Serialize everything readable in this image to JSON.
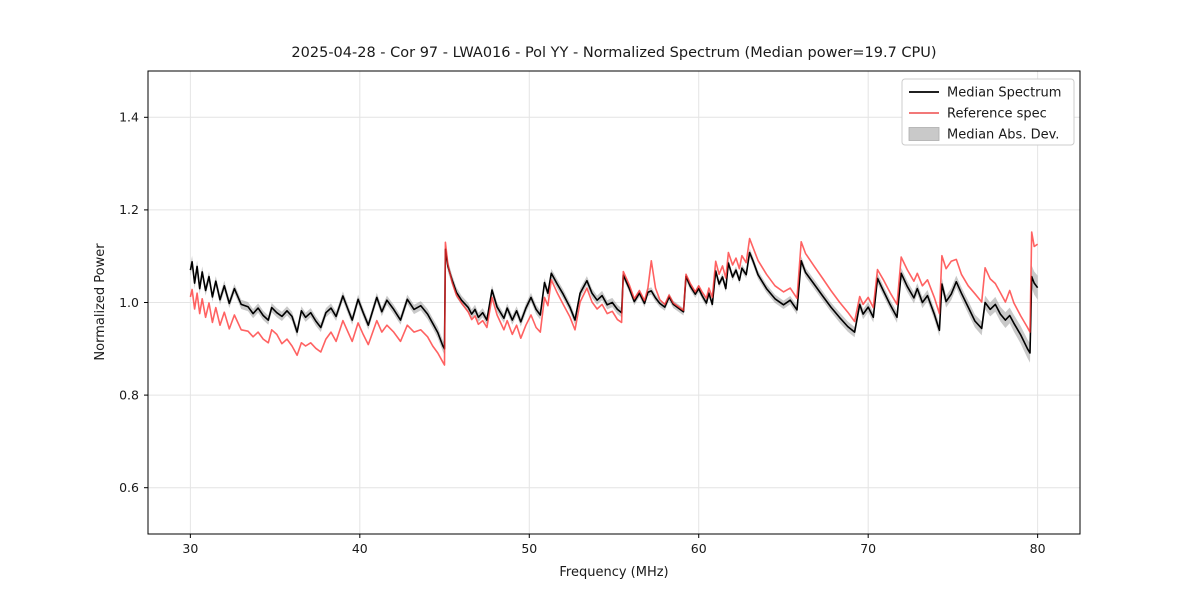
{
  "chart_data": {
    "type": "line",
    "title": "2025-04-28 - Cor 97 - LWA016 - Pol YY - Normalized Spectrum (Median power=19.7 CPU)",
    "xlabel": "Frequency (MHz)",
    "ylabel": "Normalized Power",
    "xlim": [
      27.5,
      82.5
    ],
    "ylim": [
      0.5,
      1.5
    ],
    "xticks": [
      30,
      40,
      50,
      60,
      70,
      80
    ],
    "yticks": [
      0.6,
      0.8,
      1.0,
      1.2,
      1.4
    ],
    "grid": true,
    "legend": {
      "position": "upper right",
      "items": [
        {
          "label": "Median Spectrum",
          "type": "line",
          "color": "#000000"
        },
        {
          "label": "Reference spec",
          "type": "line",
          "color": "#f06464"
        },
        {
          "label": "Median Abs. Dev.",
          "type": "patch",
          "color": "#c9c9c9"
        }
      ]
    },
    "colors": {
      "median": "#000000",
      "reference": "#ff2e2e",
      "reference_opacity": 0.75,
      "band": "#888888",
      "band_opacity": 0.45,
      "grid": "#e4e4e4",
      "frame": "#000000"
    },
    "x": [
      30.0,
      30.1,
      30.25,
      30.4,
      30.55,
      30.7,
      30.9,
      31.1,
      31.3,
      31.5,
      31.75,
      32.0,
      32.3,
      32.6,
      33.0,
      33.4,
      33.7,
      34.0,
      34.3,
      34.6,
      34.8,
      35.1,
      35.4,
      35.7,
      36.0,
      36.3,
      36.55,
      36.8,
      37.1,
      37.4,
      37.7,
      38.0,
      38.3,
      38.6,
      39.0,
      39.3,
      39.55,
      39.9,
      40.2,
      40.5,
      41.0,
      41.3,
      41.6,
      42.0,
      42.4,
      42.8,
      43.2,
      43.6,
      44.0,
      44.3,
      44.6,
      44.9,
      45.0,
      45.05,
      45.2,
      45.45,
      45.7,
      46.0,
      46.4,
      46.6,
      46.8,
      47.0,
      47.25,
      47.5,
      47.8,
      48.1,
      48.5,
      48.7,
      49.0,
      49.25,
      49.5,
      49.8,
      50.1,
      50.4,
      50.65,
      50.9,
      51.1,
      51.3,
      51.65,
      52.0,
      52.4,
      52.7,
      53.0,
      53.4,
      53.7,
      54.0,
      54.3,
      54.6,
      54.9,
      55.2,
      55.45,
      55.55,
      55.9,
      56.2,
      56.5,
      56.8,
      57.0,
      57.2,
      57.45,
      57.7,
      58.0,
      58.25,
      58.5,
      58.8,
      59.1,
      59.25,
      59.5,
      59.8,
      60.0,
      60.2,
      60.45,
      60.6,
      60.8,
      61.0,
      61.2,
      61.4,
      61.6,
      61.75,
      62.0,
      62.2,
      62.4,
      62.55,
      62.8,
      63.0,
      63.2,
      63.5,
      64.0,
      64.5,
      65.0,
      65.4,
      65.8,
      66.05,
      66.3,
      66.8,
      67.3,
      67.8,
      68.3,
      68.8,
      69.2,
      69.5,
      69.7,
      70.0,
      70.3,
      70.55,
      70.9,
      71.3,
      71.7,
      71.95,
      72.3,
      72.7,
      72.9,
      73.2,
      73.5,
      73.9,
      74.2,
      74.35,
      74.6,
      74.9,
      75.2,
      75.5,
      75.9,
      76.3,
      76.7,
      76.9,
      77.2,
      77.5,
      77.8,
      78.1,
      78.35,
      78.6,
      79.0,
      79.4,
      79.55,
      79.65,
      79.8,
      80.0
    ],
    "series": [
      {
        "name": "Median Spectrum",
        "values": [
          1.07,
          1.088,
          1.042,
          1.078,
          1.03,
          1.066,
          1.026,
          1.056,
          1.012,
          1.046,
          1.006,
          1.036,
          0.998,
          1.03,
          0.996,
          0.991,
          0.976,
          0.988,
          0.972,
          0.962,
          0.989,
          0.978,
          0.97,
          0.982,
          0.97,
          0.936,
          0.982,
          0.968,
          0.978,
          0.96,
          0.946,
          0.978,
          0.988,
          0.97,
          1.014,
          0.985,
          0.962,
          1.007,
          0.978,
          0.951,
          1.011,
          0.98,
          1.005,
          0.985,
          0.962,
          1.007,
          0.985,
          0.993,
          0.975,
          0.955,
          0.935,
          0.906,
          0.9,
          1.115,
          1.078,
          1.048,
          1.022,
          1.005,
          0.989,
          0.975,
          0.985,
          0.968,
          0.978,
          0.962,
          1.027,
          0.99,
          0.966,
          0.988,
          0.962,
          0.982,
          0.958,
          0.988,
          1.011,
          0.985,
          0.973,
          1.043,
          1.02,
          1.063,
          1.04,
          1.018,
          0.99,
          0.962,
          1.02,
          1.047,
          1.02,
          1.005,
          1.015,
          0.995,
          1.0,
          0.985,
          0.978,
          1.059,
          1.03,
          1.002,
          1.02,
          0.998,
          1.022,
          1.025,
          1.01,
          0.998,
          0.99,
          1.012,
          0.996,
          0.988,
          0.98,
          1.056,
          1.035,
          1.018,
          1.03,
          1.015,
          0.999,
          1.02,
          0.996,
          1.068,
          1.04,
          1.055,
          1.03,
          1.085,
          1.055,
          1.07,
          1.048,
          1.074,
          1.06,
          1.108,
          1.09,
          1.06,
          1.03,
          1.008,
          0.995,
          1.005,
          0.984,
          1.09,
          1.065,
          1.04,
          1.015,
          0.99,
          0.968,
          0.948,
          0.936,
          0.996,
          0.975,
          0.99,
          0.968,
          1.052,
          1.025,
          0.995,
          0.968,
          1.063,
          1.035,
          1.01,
          1.03,
          1.0,
          1.015,
          0.975,
          0.94,
          1.04,
          1.002,
          1.018,
          1.045,
          1.02,
          0.99,
          0.96,
          0.944,
          1.0,
          0.985,
          0.996,
          0.975,
          0.962,
          0.972,
          0.955,
          0.93,
          0.9,
          0.891,
          1.056,
          1.042,
          1.032
        ]
      },
      {
        "name": "Reference spec",
        "values": [
          1.012,
          1.028,
          0.986,
          1.02,
          0.976,
          1.008,
          0.968,
          0.999,
          0.957,
          0.989,
          0.951,
          0.979,
          0.943,
          0.973,
          0.941,
          0.938,
          0.926,
          0.936,
          0.921,
          0.913,
          0.941,
          0.931,
          0.911,
          0.921,
          0.906,
          0.886,
          0.913,
          0.906,
          0.913,
          0.901,
          0.893,
          0.921,
          0.936,
          0.916,
          0.961,
          0.936,
          0.916,
          0.956,
          0.931,
          0.909,
          0.961,
          0.936,
          0.951,
          0.936,
          0.916,
          0.951,
          0.936,
          0.941,
          0.926,
          0.906,
          0.891,
          0.871,
          0.865,
          1.13,
          1.082,
          1.043,
          1.016,
          0.999,
          0.979,
          0.963,
          0.971,
          0.953,
          0.961,
          0.946,
          1.011,
          0.973,
          0.941,
          0.961,
          0.931,
          0.951,
          0.923,
          0.951,
          0.973,
          0.946,
          0.936,
          1.011,
          0.993,
          1.049,
          1.021,
          0.996,
          0.969,
          0.941,
          1.001,
          1.031,
          1.001,
          0.986,
          0.996,
          0.976,
          0.981,
          0.963,
          0.957,
          1.067,
          1.038,
          1.008,
          1.026,
          1.004,
          1.031,
          1.09,
          1.031,
          1.006,
          0.996,
          1.016,
          0.999,
          0.991,
          0.983,
          1.061,
          1.041,
          1.023,
          1.036,
          1.023,
          1.009,
          1.031,
          1.011,
          1.089,
          1.061,
          1.079,
          1.053,
          1.108,
          1.081,
          1.096,
          1.073,
          1.101,
          1.086,
          1.138,
          1.119,
          1.091,
          1.061,
          1.036,
          1.023,
          1.031,
          1.009,
          1.131,
          1.106,
          1.079,
          1.053,
          1.026,
          1.001,
          0.979,
          0.959,
          1.013,
          0.996,
          1.011,
          0.989,
          1.071,
          1.049,
          1.021,
          0.996,
          1.098,
          1.071,
          1.046,
          1.063,
          1.036,
          1.049,
          1.011,
          0.976,
          1.101,
          1.073,
          1.089,
          1.093,
          1.061,
          1.036,
          1.019,
          1.001,
          1.075,
          1.051,
          1.041,
          1.021,
          1.001,
          1.026,
          0.999,
          0.971,
          0.946,
          0.936,
          1.152,
          1.121,
          1.126
        ]
      },
      {
        "name": "Median Abs. Dev.",
        "band_around": "Median Spectrum",
        "half_width": [
          0.013,
          0.013,
          0.012,
          0.012,
          0.012,
          0.012,
          0.011,
          0.011,
          0.011,
          0.011,
          0.011,
          0.011,
          0.01,
          0.01,
          0.01,
          0.01,
          0.01,
          0.01,
          0.01,
          0.01,
          0.01,
          0.01,
          0.01,
          0.01,
          0.01,
          0.011,
          0.01,
          0.01,
          0.01,
          0.01,
          0.01,
          0.01,
          0.01,
          0.01,
          0.01,
          0.01,
          0.01,
          0.01,
          0.01,
          0.01,
          0.01,
          0.01,
          0.01,
          0.01,
          0.01,
          0.01,
          0.01,
          0.01,
          0.011,
          0.011,
          0.012,
          0.012,
          0.013,
          0.013,
          0.012,
          0.011,
          0.011,
          0.01,
          0.01,
          0.01,
          0.01,
          0.01,
          0.01,
          0.01,
          0.01,
          0.01,
          0.01,
          0.01,
          0.01,
          0.01,
          0.01,
          0.01,
          0.01,
          0.01,
          0.01,
          0.01,
          0.01,
          0.01,
          0.01,
          0.01,
          0.01,
          0.01,
          0.01,
          0.01,
          0.01,
          0.01,
          0.01,
          0.01,
          0.01,
          0.01,
          0.01,
          0.008,
          0.008,
          0.008,
          0.008,
          0.008,
          0.008,
          0.008,
          0.008,
          0.008,
          0.008,
          0.008,
          0.008,
          0.008,
          0.008,
          0.008,
          0.008,
          0.008,
          0.008,
          0.008,
          0.008,
          0.008,
          0.008,
          0.008,
          0.008,
          0.008,
          0.008,
          0.008,
          0.008,
          0.008,
          0.008,
          0.008,
          0.008,
          0.009,
          0.009,
          0.009,
          0.009,
          0.009,
          0.009,
          0.009,
          0.01,
          0.01,
          0.01,
          0.01,
          0.01,
          0.01,
          0.011,
          0.011,
          0.011,
          0.011,
          0.011,
          0.011,
          0.011,
          0.011,
          0.011,
          0.011,
          0.012,
          0.012,
          0.012,
          0.012,
          0.012,
          0.012,
          0.012,
          0.012,
          0.013,
          0.013,
          0.013,
          0.013,
          0.013,
          0.013,
          0.014,
          0.014,
          0.015,
          0.015,
          0.015,
          0.016,
          0.016,
          0.017,
          0.017,
          0.018,
          0.019,
          0.02,
          0.021,
          0.024,
          0.025,
          0.026
        ]
      }
    ]
  }
}
